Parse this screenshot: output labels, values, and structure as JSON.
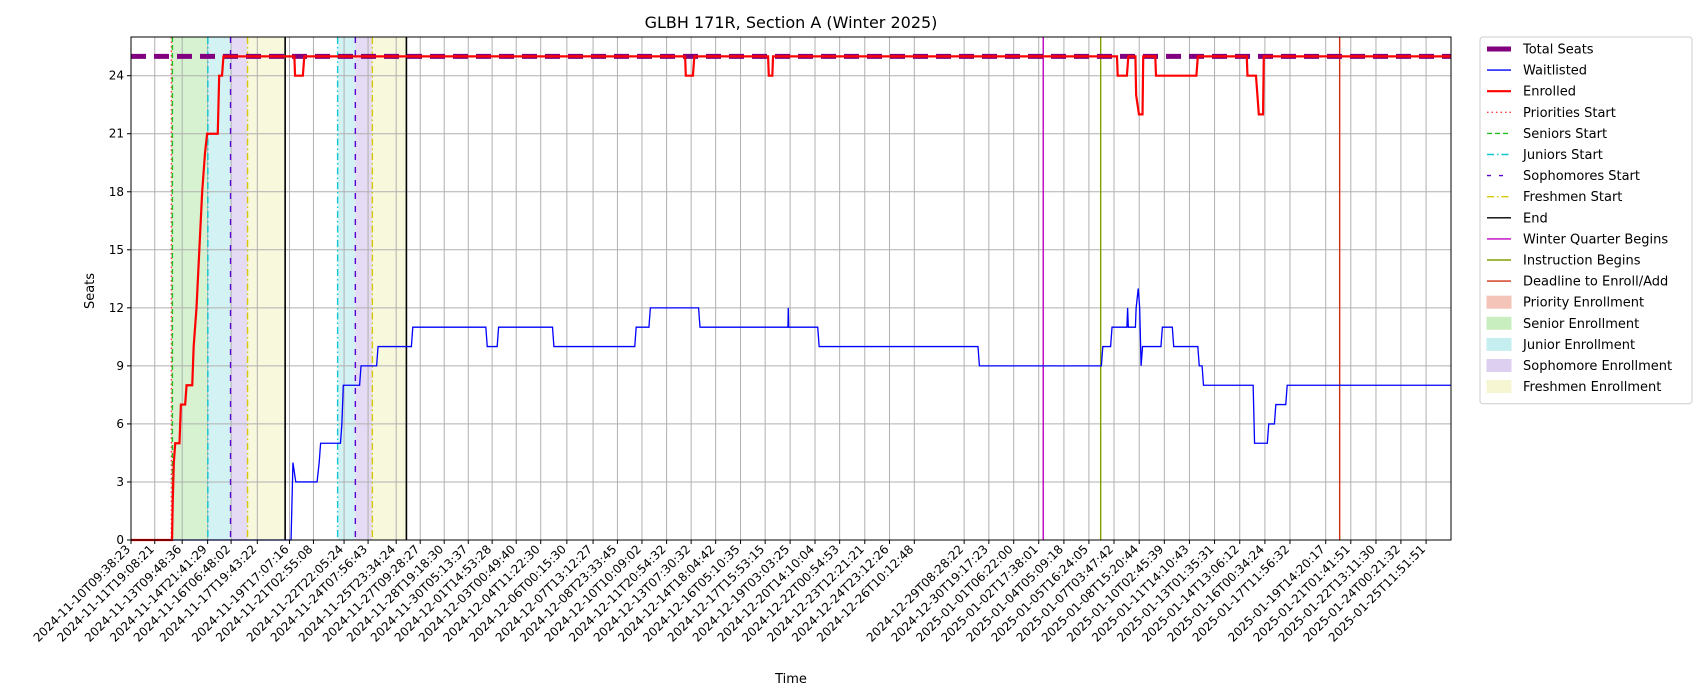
{
  "chart_data": {
    "type": "line",
    "title": "GLBH 171R, Section A (Winter 2025)",
    "xlabel": "Time",
    "ylabel": "Seats",
    "ylim": [
      0,
      26
    ],
    "yticks": [
      0,
      3,
      6,
      9,
      12,
      15,
      18,
      21,
      24
    ],
    "x_range": [
      "2024-11-10T09:38:23",
      "2025-01-26T23:00:00"
    ],
    "grid": true,
    "legend_placement": "outside-right",
    "xtick_labels": [
      "2024-11-10T09:38:23",
      "2024-11-11T19:08:21",
      "2024-11-13T09:48:36",
      "2024-11-14T21:41:29",
      "2024-11-16T06:48:02",
      "2024-11-17T19:43:22",
      "2024-11-19T17:07:16",
      "2024-11-21T02:55:08",
      "2024-11-22T22:05:24",
      "2024-11-24T07:56:43",
      "2024-11-25T23:34:24",
      "2024-11-27T09:28:27",
      "2024-11-28T19:18:30",
      "2024-11-30T05:13:37",
      "2024-12-01T14:53:28",
      "2024-12-03T00:49:40",
      "2024-12-04T11:22:30",
      "2024-12-06T00:15:30",
      "2024-12-07T13:12:27",
      "2024-12-08T23:33:45",
      "2024-12-10T10:09:02",
      "2024-12-11T20:54:32",
      "2024-12-13T07:30:32",
      "2024-12-14T18:04:42",
      "2024-12-16T05:10:35",
      "2024-12-17T15:53:15",
      "2024-12-19T03:03:25",
      "2024-12-20T14:10:04",
      "2024-12-22T00:54:53",
      "2024-12-23T12:21:21",
      "2024-12-24T23:12:26",
      "2024-12-26T10:12:48",
      "2024-12-29T08:28:22",
      "2024-12-30T19:17:23",
      "2025-01-01T06:22:00",
      "2025-01-02T17:38:01",
      "2025-01-04T05:09:18",
      "2025-01-05T16:24:05",
      "2025-01-07T03:47:42",
      "2025-01-08T15:20:44",
      "2025-01-10T02:45:39",
      "2025-01-11T14:10:43",
      "2025-01-13T01:35:31",
      "2025-01-14T13:06:12",
      "2025-01-16T00:34:24",
      "2025-01-17T11:56:32",
      "2025-01-19T14:20:17",
      "2025-01-21T01:41:51",
      "2025-01-22T13:11:30",
      "2025-01-24T00:21:32",
      "2025-01-25T11:51:51"
    ],
    "series": [
      {
        "name": "Total Seats",
        "color": "#800080",
        "style": "dashed-thick",
        "points": [
          [
            "2024-11-10T09:38:23",
            25
          ],
          [
            "2025-01-26T23:00:00",
            25
          ]
        ]
      },
      {
        "name": "Waitlisted",
        "color": "#0000ff",
        "style": "step",
        "points": [
          [
            "2024-11-10T09:38:23",
            0
          ],
          [
            "2024-11-19T19:20:00",
            0
          ],
          [
            "2024-11-19T22:00:00",
            4
          ],
          [
            "2024-11-20T02:00:00",
            3
          ],
          [
            "2024-11-21T08:00:00",
            3
          ],
          [
            "2024-11-21T11:00:00",
            4
          ],
          [
            "2024-11-21T13:00:00",
            5
          ],
          [
            "2024-11-22T17:00:00",
            5
          ],
          [
            "2024-11-22T19:00:00",
            6
          ],
          [
            "2024-11-22T21:00:00",
            8
          ],
          [
            "2024-11-23T20:00:00",
            8
          ],
          [
            "2024-11-23T22:00:00",
            9
          ],
          [
            "2024-11-24T20:00:00",
            9
          ],
          [
            "2024-11-24T22:00:00",
            10
          ],
          [
            "2024-11-26T21:00:00",
            10
          ],
          [
            "2024-11-26T23:00:00",
            11
          ],
          [
            "2024-12-01T06:00:00",
            11
          ],
          [
            "2024-12-01T08:00:00",
            10
          ],
          [
            "2024-12-01T22:00:00",
            10
          ],
          [
            "2024-12-02T00:00:00",
            11
          ],
          [
            "2024-12-05T04:00:00",
            11
          ],
          [
            "2024-12-05T06:00:00",
            10
          ],
          [
            "2024-12-10T00:00:00",
            10
          ],
          [
            "2024-12-10T02:00:00",
            11
          ],
          [
            "2024-12-10T20:00:00",
            11
          ],
          [
            "2024-12-10T22:00:00",
            12
          ],
          [
            "2024-12-13T18:00:00",
            12
          ],
          [
            "2024-12-13T20:00:00",
            11
          ],
          [
            "2024-12-19T00:00:00",
            11
          ],
          [
            "2024-12-19T00:30:00",
            12
          ],
          [
            "2024-12-19T01:00:00",
            11
          ],
          [
            "2024-12-20T18:00:00",
            11
          ],
          [
            "2024-12-20T20:00:00",
            10
          ],
          [
            "2024-12-30T04:00:00",
            10
          ],
          [
            "2024-12-30T06:00:00",
            9
          ],
          [
            "2025-01-06T10:00:00",
            9
          ],
          [
            "2025-01-06T12:00:00",
            10
          ],
          [
            "2025-01-06T23:00:00",
            10
          ],
          [
            "2025-01-07T01:00:00",
            11
          ],
          [
            "2025-01-07T22:00:00",
            11
          ],
          [
            "2025-01-07T23:00:00",
            12
          ],
          [
            "2025-01-08T00:00:00",
            11
          ],
          [
            "2025-01-08T10:00:00",
            11
          ],
          [
            "2025-01-08T11:00:00",
            12
          ],
          [
            "2025-01-08T14:00:00",
            13
          ],
          [
            "2025-01-08T16:00:00",
            12
          ],
          [
            "2025-01-08T18:00:00",
            9
          ],
          [
            "2025-01-08T20:00:00",
            10
          ],
          [
            "2025-01-09T22:00:00",
            10
          ],
          [
            "2025-01-10T00:00:00",
            11
          ],
          [
            "2025-01-10T14:00:00",
            11
          ],
          [
            "2025-01-10T16:00:00",
            10
          ],
          [
            "2025-01-12T02:00:00",
            10
          ],
          [
            "2025-01-12T04:00:00",
            9
          ],
          [
            "2025-01-12T08:00:00",
            9
          ],
          [
            "2025-01-12T10:00:00",
            8
          ],
          [
            "2025-01-15T08:00:00",
            8
          ],
          [
            "2025-01-15T10:00:00",
            5
          ],
          [
            "2025-01-16T04:00:00",
            5
          ],
          [
            "2025-01-16T06:00:00",
            6
          ],
          [
            "2025-01-16T14:00:00",
            6
          ],
          [
            "2025-01-16T16:00:00",
            7
          ],
          [
            "2025-01-17T06:00:00",
            7
          ],
          [
            "2025-01-17T08:00:00",
            8
          ],
          [
            "2025-01-26T23:00:00",
            8
          ]
        ]
      },
      {
        "name": "Enrolled",
        "color": "#ff0000",
        "style": "step-thick",
        "points": [
          [
            "2024-11-10T09:38:23",
            0
          ],
          [
            "2024-11-12T19:30:00",
            0
          ],
          [
            "2024-11-12T20:30:00",
            2
          ],
          [
            "2024-11-12T22:00:00",
            4
          ],
          [
            "2024-11-13T00:00:00",
            5
          ],
          [
            "2024-11-13T06:00:00",
            5
          ],
          [
            "2024-11-13T08:00:00",
            7
          ],
          [
            "2024-11-13T14:00:00",
            7
          ],
          [
            "2024-11-13T16:00:00",
            8
          ],
          [
            "2024-11-14T00:00:00",
            8
          ],
          [
            "2024-11-14T02:00:00",
            10
          ],
          [
            "2024-11-14T06:00:00",
            12
          ],
          [
            "2024-11-14T10:00:00",
            15
          ],
          [
            "2024-11-14T14:00:00",
            18
          ],
          [
            "2024-11-14T18:00:00",
            20
          ],
          [
            "2024-11-14T21:00:00",
            21
          ],
          [
            "2024-11-15T12:00:00",
            21
          ],
          [
            "2024-11-15T14:00:00",
            24
          ],
          [
            "2024-11-15T18:00:00",
            24
          ],
          [
            "2024-11-15T20:00:00",
            25
          ],
          [
            "2024-11-20T00:00:00",
            25
          ],
          [
            "2024-11-20T01:00:00",
            24
          ],
          [
            "2024-11-20T12:00:00",
            24
          ],
          [
            "2024-11-20T14:00:00",
            25
          ],
          [
            "2024-12-12T23:00:00",
            25
          ],
          [
            "2024-12-13T00:00:00",
            24
          ],
          [
            "2024-12-13T10:00:00",
            24
          ],
          [
            "2024-12-13T12:00:00",
            25
          ],
          [
            "2024-12-17T20:00:00",
            25
          ],
          [
            "2024-12-17T21:00:00",
            24
          ],
          [
            "2024-12-18T02:00:00",
            24
          ],
          [
            "2024-12-18T03:00:00",
            25
          ],
          [
            "2025-01-07T08:00:00",
            25
          ],
          [
            "2025-01-07T09:00:00",
            24
          ],
          [
            "2025-01-07T22:00:00",
            24
          ],
          [
            "2025-01-08T00:00:00",
            25
          ],
          [
            "2025-01-08T10:00:00",
            25
          ],
          [
            "2025-01-08T11:00:00",
            23
          ],
          [
            "2025-01-08T15:00:00",
            22
          ],
          [
            "2025-01-08T20:00:00",
            22
          ],
          [
            "2025-01-08T21:00:00",
            25
          ],
          [
            "2025-01-09T14:00:00",
            25
          ],
          [
            "2025-01-09T15:00:00",
            24
          ],
          [
            "2025-01-12T00:00:00",
            24
          ],
          [
            "2025-01-12T02:00:00",
            25
          ],
          [
            "2025-01-14T23:00:00",
            25
          ],
          [
            "2025-01-15T00:00:00",
            24
          ],
          [
            "2025-01-15T12:00:00",
            24
          ],
          [
            "2025-01-15T14:00:00",
            23
          ],
          [
            "2025-01-15T16:00:00",
            22
          ],
          [
            "2025-01-15T22:00:00",
            22
          ],
          [
            "2025-01-15T23:00:00",
            25
          ],
          [
            "2025-01-26T23:00:00",
            25
          ]
        ]
      }
    ],
    "vertical_lines": [
      {
        "name": "Priorities Start",
        "color": "#ff4040",
        "style": "dotted",
        "x": [
          "2024-11-12T18:30:00"
        ]
      },
      {
        "name": "Seniors Start",
        "color": "#22c022",
        "style": "dashed",
        "x": [
          "2024-11-12T20:00:00"
        ]
      },
      {
        "name": "Juniors Start",
        "color": "#10c8d0",
        "style": "dashdot",
        "x": [
          "2024-11-14T22:00:00",
          "2024-11-22T13:00:00"
        ]
      },
      {
        "name": "Sophomores Start",
        "color": "#5a00d0",
        "style": "loosedash",
        "x": [
          "2024-11-16T06:00:00",
          "2024-11-23T14:00:00"
        ]
      },
      {
        "name": "Freshmen Start",
        "color": "#d8c800",
        "style": "dashdot",
        "x": [
          "2024-11-17T06:00:00",
          "2024-11-24T14:00:00"
        ]
      },
      {
        "name": "End",
        "color": "#000000",
        "style": "solid",
        "x": [
          "2024-11-19T11:00:00",
          "2024-11-26T14:00:00"
        ]
      },
      {
        "name": "Winter Quarter Begins",
        "color": "#c000c0",
        "style": "solid",
        "x": [
          "2025-01-03T00:00:00"
        ]
      },
      {
        "name": "Instruction Begins",
        "color": "#80a000",
        "style": "solid",
        "x": [
          "2025-01-06T09:00:00"
        ]
      },
      {
        "name": "Deadline to Enroll/Add",
        "color": "#d03010",
        "style": "solid",
        "x": [
          "2025-01-20T10:00:00"
        ]
      }
    ],
    "spans": [
      {
        "name": "Priority Enrollment",
        "color": "#f4c4b8",
        "ranges": [
          [
            "2024-11-12T18:30:00",
            "2024-11-12T20:00:00"
          ]
        ]
      },
      {
        "name": "Senior Enrollment",
        "color": "#c8eec0",
        "ranges": [
          [
            "2024-11-12T20:00:00",
            "2024-11-14T22:00:00"
          ]
        ]
      },
      {
        "name": "Junior Enrollment",
        "color": "#c4eef0",
        "ranges": [
          [
            "2024-11-14T22:00:00",
            "2024-11-16T06:00:00"
          ],
          [
            "2024-11-22T13:00:00",
            "2024-11-23T14:00:00"
          ]
        ]
      },
      {
        "name": "Sophomore Enrollment",
        "color": "#dccff0",
        "ranges": [
          [
            "2024-11-16T06:00:00",
            "2024-11-17T06:00:00"
          ],
          [
            "2024-11-23T14:00:00",
            "2024-11-24T14:00:00"
          ]
        ]
      },
      {
        "name": "Freshmen Enrollment",
        "color": "#f6f6d2",
        "ranges": [
          [
            "2024-11-17T06:00:00",
            "2024-11-19T11:00:00"
          ],
          [
            "2024-11-24T14:00:00",
            "2024-11-26T14:00:00"
          ]
        ]
      }
    ],
    "legend": [
      {
        "label": "Total Seats",
        "kind": "line",
        "color": "#800080",
        "style": "thick"
      },
      {
        "label": "Waitlisted",
        "kind": "line",
        "color": "#0000ff",
        "style": "solid"
      },
      {
        "label": "Enrolled",
        "kind": "line",
        "color": "#ff0000",
        "style": "thick"
      },
      {
        "label": "Priorities Start",
        "kind": "line",
        "color": "#ff4040",
        "style": "dotted"
      },
      {
        "label": "Seniors Start",
        "kind": "line",
        "color": "#22c022",
        "style": "dashed"
      },
      {
        "label": "Juniors Start",
        "kind": "line",
        "color": "#10c8d0",
        "style": "dashdot"
      },
      {
        "label": "Sophomores Start",
        "kind": "line",
        "color": "#5a00d0",
        "style": "loosedash"
      },
      {
        "label": "Freshmen Start",
        "kind": "line",
        "color": "#d8c800",
        "style": "dashdot"
      },
      {
        "label": "End",
        "kind": "line",
        "color": "#000000",
        "style": "solid"
      },
      {
        "label": "Winter Quarter Begins",
        "kind": "line",
        "color": "#c000c0",
        "style": "solid"
      },
      {
        "label": "Instruction Begins",
        "kind": "line",
        "color": "#80a000",
        "style": "solid"
      },
      {
        "label": "Deadline to Enroll/Add",
        "kind": "line",
        "color": "#d03010",
        "style": "solid"
      },
      {
        "label": "Priority Enrollment",
        "kind": "patch",
        "color": "#f4c4b8"
      },
      {
        "label": "Senior Enrollment",
        "kind": "patch",
        "color": "#c8eec0"
      },
      {
        "label": "Junior Enrollment",
        "kind": "patch",
        "color": "#c4eef0"
      },
      {
        "label": "Sophomore Enrollment",
        "kind": "patch",
        "color": "#dccff0"
      },
      {
        "label": "Freshmen Enrollment",
        "kind": "patch",
        "color": "#f6f6d2"
      }
    ]
  }
}
